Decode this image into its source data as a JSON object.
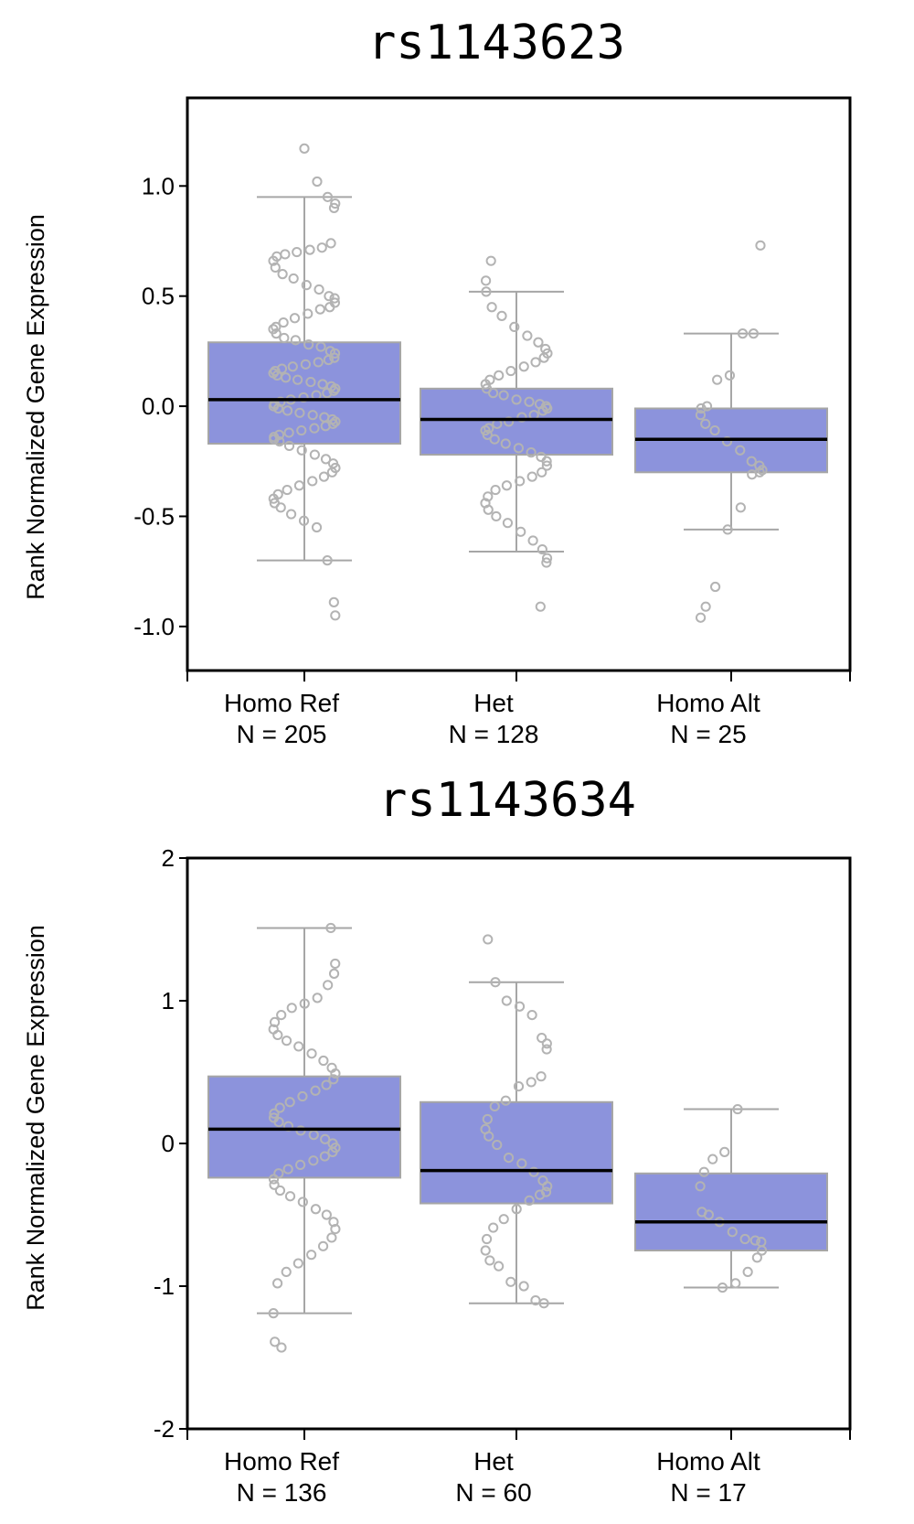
{
  "chart_data": [
    {
      "type": "boxplot",
      "title": "rs1143623",
      "ylabel": "Rank Normalized Gene Expression",
      "xlabel": "",
      "ylim": [
        -1.2,
        1.4
      ],
      "yticks": [
        1.0,
        0.5,
        0.0,
        -0.5,
        -1.0
      ],
      "ytick_labels": [
        "1.0",
        "0.5",
        "0.0",
        "-0.5",
        "-1.0"
      ],
      "box_color": "#8c93dc",
      "point_color": "#b3b3b3",
      "groups": [
        {
          "name": "Homo Ref",
          "n_label": "N = 205",
          "q1": -0.17,
          "median": 0.03,
          "q3": 0.29,
          "whisker_low": -0.7,
          "whisker_high": 0.95,
          "points": [
            1.17,
            1.02,
            0.95,
            0.9,
            0.92,
            0.74,
            0.72,
            0.71,
            0.7,
            0.69,
            0.68,
            0.66,
            0.63,
            0.6,
            0.58,
            0.55,
            0.53,
            0.5,
            0.49,
            0.47,
            0.45,
            0.44,
            0.42,
            0.4,
            0.38,
            0.36,
            0.35,
            0.33,
            0.31,
            0.3,
            0.28,
            0.27,
            0.25,
            0.24,
            0.22,
            0.21,
            0.2,
            0.19,
            0.18,
            0.17,
            0.16,
            0.15,
            0.14,
            0.13,
            0.12,
            0.11,
            0.1,
            0.09,
            0.08,
            0.07,
            0.06,
            0.05,
            0.04,
            0.03,
            0.02,
            0.01,
            0.0,
            -0.01,
            -0.02,
            -0.03,
            -0.04,
            -0.05,
            -0.06,
            -0.07,
            -0.08,
            -0.09,
            -0.1,
            -0.11,
            -0.12,
            -0.13,
            -0.14,
            -0.15,
            -0.16,
            -0.18,
            -0.2,
            -0.22,
            -0.24,
            -0.26,
            -0.28,
            -0.3,
            -0.32,
            -0.34,
            -0.36,
            -0.38,
            -0.4,
            -0.42,
            -0.44,
            -0.46,
            -0.49,
            -0.52,
            -0.55,
            -0.7,
            -0.89,
            -0.95
          ]
        },
        {
          "name": "Het",
          "n_label": "N = 128",
          "q1": -0.22,
          "median": -0.06,
          "q3": 0.08,
          "whisker_low": -0.66,
          "whisker_high": 0.52,
          "points": [
            0.66,
            0.57,
            0.52,
            0.45,
            0.41,
            0.36,
            0.32,
            0.29,
            0.26,
            0.24,
            0.22,
            0.2,
            0.18,
            0.16,
            0.14,
            0.12,
            0.1,
            0.08,
            0.06,
            0.05,
            0.03,
            0.02,
            0.01,
            0.0,
            -0.01,
            -0.02,
            -0.04,
            -0.05,
            -0.07,
            -0.08,
            -0.1,
            -0.11,
            -0.13,
            -0.15,
            -0.17,
            -0.19,
            -0.21,
            -0.23,
            -0.25,
            -0.27,
            -0.3,
            -0.32,
            -0.34,
            -0.36,
            -0.38,
            -0.41,
            -0.44,
            -0.47,
            -0.5,
            -0.53,
            -0.57,
            -0.61,
            -0.65,
            -0.69,
            -0.71,
            -0.91
          ]
        },
        {
          "name": "Homo Alt",
          "n_label": "N = 25",
          "q1": -0.3,
          "median": -0.15,
          "q3": -0.01,
          "whisker_low": -0.56,
          "whisker_high": 0.33,
          "points": [
            0.73,
            0.33,
            0.33,
            0.14,
            0.12,
            0.0,
            -0.01,
            -0.04,
            -0.08,
            -0.11,
            -0.16,
            -0.2,
            -0.25,
            -0.27,
            -0.29,
            -0.3,
            -0.31,
            -0.46,
            -0.56,
            -0.82,
            -0.91,
            -0.96
          ]
        }
      ]
    },
    {
      "type": "boxplot",
      "title": "rs1143634",
      "ylabel": "Rank Normalized Gene Expression",
      "xlabel": "",
      "ylim": [
        -2,
        2
      ],
      "yticks": [
        2,
        1,
        0,
        -1,
        -2
      ],
      "ytick_labels": [
        "2",
        "1",
        "0",
        "-1",
        "-2"
      ],
      "box_color": "#8c93dc",
      "point_color": "#b3b3b3",
      "groups": [
        {
          "name": "Homo Ref",
          "n_label": "N = 136",
          "q1": -0.24,
          "median": 0.1,
          "q3": 0.47,
          "whisker_low": -1.19,
          "whisker_high": 1.51,
          "points": [
            1.51,
            1.26,
            1.19,
            1.11,
            1.02,
            0.98,
            0.95,
            0.9,
            0.85,
            0.8,
            0.76,
            0.72,
            0.68,
            0.63,
            0.58,
            0.53,
            0.49,
            0.45,
            0.41,
            0.37,
            0.33,
            0.29,
            0.25,
            0.21,
            0.18,
            0.15,
            0.12,
            0.09,
            0.06,
            0.03,
            0.0,
            -0.03,
            -0.06,
            -0.09,
            -0.12,
            -0.15,
            -0.18,
            -0.21,
            -0.25,
            -0.29,
            -0.33,
            -0.37,
            -0.41,
            -0.46,
            -0.5,
            -0.55,
            -0.6,
            -0.66,
            -0.72,
            -0.78,
            -0.84,
            -0.9,
            -0.98,
            -1.19,
            -1.39,
            -1.43
          ]
        },
        {
          "name": "Het",
          "n_label": "N = 60",
          "q1": -0.42,
          "median": -0.19,
          "q3": 0.29,
          "whisker_low": -1.12,
          "whisker_high": 1.13,
          "points": [
            1.43,
            1.13,
            1.0,
            0.96,
            0.9,
            0.74,
            0.7,
            0.66,
            0.47,
            0.43,
            0.4,
            0.3,
            0.26,
            0.17,
            0.1,
            0.05,
            -0.01,
            -0.1,
            -0.14,
            -0.2,
            -0.26,
            -0.3,
            -0.34,
            -0.36,
            -0.4,
            -0.46,
            -0.53,
            -0.59,
            -0.67,
            -0.75,
            -0.82,
            -0.86,
            -0.97,
            -1.0,
            -1.1,
            -1.12
          ]
        },
        {
          "name": "Homo Alt",
          "n_label": "N = 17",
          "q1": -0.75,
          "median": -0.55,
          "q3": -0.21,
          "whisker_low": -1.01,
          "whisker_high": 0.24,
          "points": [
            0.24,
            -0.06,
            -0.11,
            -0.2,
            -0.3,
            -0.48,
            -0.5,
            -0.55,
            -0.62,
            -0.67,
            -0.68,
            -0.69,
            -0.75,
            -0.8,
            -0.9,
            -0.98,
            -1.01
          ]
        }
      ]
    }
  ]
}
